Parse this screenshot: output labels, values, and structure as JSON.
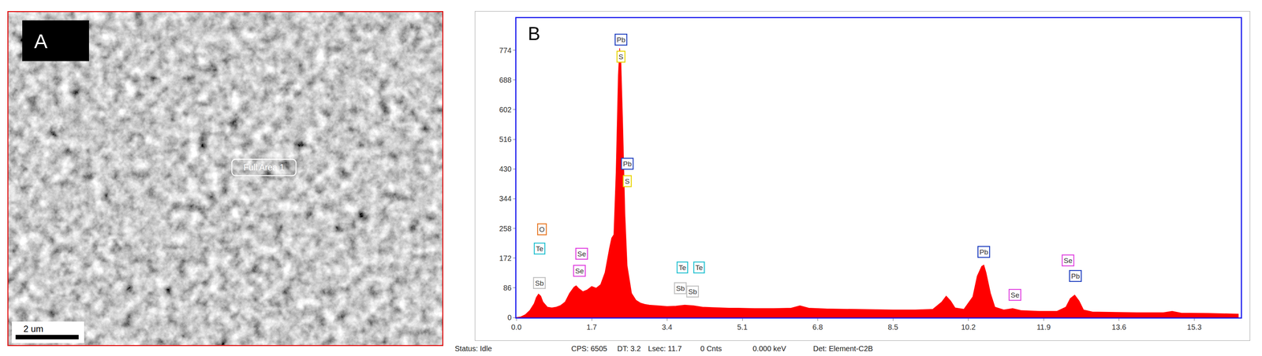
{
  "panel_a": {
    "letter": "A",
    "area_label": "Full Area 1",
    "scale_bar": "2 um"
  },
  "panel_b_letter": "B",
  "status_bar": [
    "Status: Idle",
    "CPS: 6505",
    "DT: 3.2",
    "Lsec: 11.7",
    "0 Cnts",
    "0.000 keV",
    "Det: Element-C2B"
  ],
  "chart_data": {
    "type": "area",
    "color": "#ff0000",
    "x": [
      0.0,
      0.1,
      0.2,
      0.3,
      0.4,
      0.45,
      0.5,
      0.55,
      0.6,
      0.7,
      0.8,
      0.9,
      1.0,
      1.1,
      1.2,
      1.3,
      1.35,
      1.4,
      1.5,
      1.6,
      1.7,
      1.8,
      1.9,
      2.0,
      2.1,
      2.15,
      2.2,
      2.25,
      2.3,
      2.33,
      2.36,
      2.4,
      2.45,
      2.5,
      2.6,
      2.7,
      2.8,
      2.9,
      3.0,
      3.2,
      3.4,
      3.6,
      3.8,
      4.0,
      4.2,
      4.4,
      4.6,
      4.8,
      5.0,
      5.4,
      5.8,
      6.2,
      6.4,
      6.6,
      7.0,
      7.5,
      8.0,
      8.5,
      9.0,
      9.4,
      9.6,
      9.7,
      9.8,
      9.9,
      10.1,
      10.3,
      10.4,
      10.5,
      10.55,
      10.6,
      10.7,
      10.8,
      11.0,
      11.2,
      11.4,
      11.8,
      12.2,
      12.4,
      12.5,
      12.6,
      12.7,
      12.8,
      13.0,
      13.6,
      14.0,
      14.6,
      14.8,
      15.0,
      15.6,
      16.3
    ],
    "values": [
      0,
      2,
      8,
      20,
      40,
      58,
      68,
      62,
      45,
      30,
      28,
      30,
      35,
      45,
      70,
      88,
      92,
      85,
      75,
      80,
      90,
      85,
      95,
      130,
      200,
      230,
      240,
      420,
      700,
      780,
      740,
      560,
      300,
      150,
      70,
      50,
      42,
      38,
      36,
      34,
      32,
      33,
      36,
      34,
      30,
      29,
      28,
      27,
      27,
      26,
      26,
      27,
      34,
      27,
      25,
      24,
      23,
      22,
      22,
      24,
      45,
      62,
      48,
      28,
      24,
      60,
      120,
      148,
      152,
      130,
      70,
      30,
      22,
      26,
      20,
      18,
      18,
      30,
      55,
      65,
      48,
      22,
      16,
      15,
      14,
      14,
      18,
      13,
      12,
      10
    ],
    "xlim": [
      0,
      16.35
    ],
    "ylim": [
      0,
      867
    ],
    "xticks": [
      {
        "value": 0,
        "label": "0.0"
      },
      1.7,
      3.4,
      5.1,
      6.8,
      8.5,
      10.2,
      11.9,
      13.6,
      15.3
    ],
    "yticks": [
      0,
      86,
      172,
      258,
      344,
      430,
      516,
      602,
      688,
      774
    ],
    "grid": false,
    "annotations": [
      {
        "text": "Pb",
        "x": 2.36,
        "y": 805,
        "color": "#1f3fbf"
      },
      {
        "text": "S",
        "x": 2.36,
        "y": 755,
        "color": "#e8d400"
      },
      {
        "text": "Pb",
        "x": 2.5,
        "y": 445,
        "color": "#1f3fbf"
      },
      {
        "text": "S",
        "x": 2.5,
        "y": 395,
        "color": "#e8d400"
      },
      {
        "text": "O",
        "x": 0.58,
        "y": 255,
        "color": "#e87722"
      },
      {
        "text": "Te",
        "x": 0.52,
        "y": 200,
        "color": "#20c0d0"
      },
      {
        "text": "Sb",
        "x": 0.52,
        "y": 100,
        "color": "#c0c0c0"
      },
      {
        "text": "Se",
        "x": 1.47,
        "y": 185,
        "color": "#e040e0"
      },
      {
        "text": "Se",
        "x": 1.42,
        "y": 135,
        "color": "#e040e0"
      },
      {
        "text": "Te",
        "x": 3.75,
        "y": 145,
        "color": "#20c0d0"
      },
      {
        "text": "Te",
        "x": 4.12,
        "y": 145,
        "color": "#20c0d0"
      },
      {
        "text": "Sb",
        "x": 3.7,
        "y": 85,
        "color": "#c0c0c0"
      },
      {
        "text": "Sb",
        "x": 3.98,
        "y": 75,
        "color": "#c0c0c0"
      },
      {
        "text": "Pb",
        "x": 10.55,
        "y": 190,
        "color": "#1f3fbf"
      },
      {
        "text": "Se",
        "x": 11.25,
        "y": 65,
        "color": "#e040e0"
      },
      {
        "text": "Se",
        "x": 12.45,
        "y": 165,
        "color": "#e040e0"
      },
      {
        "text": "Pb",
        "x": 12.62,
        "y": 120,
        "color": "#1f3fbf"
      }
    ]
  }
}
